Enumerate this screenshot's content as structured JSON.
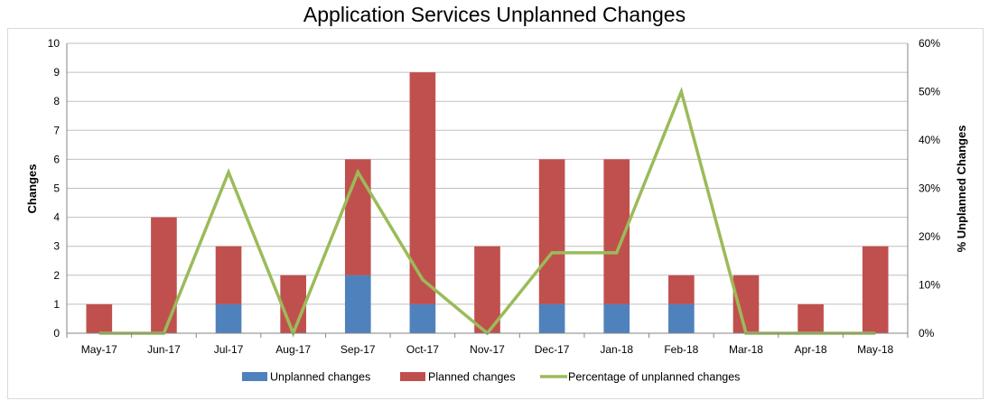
{
  "chart_data": {
    "type": "bar",
    "title": "Application Services Unplanned Changes",
    "ylabel": "Changes",
    "y2label": "% Unplanned Changes",
    "xlabel": "",
    "ylim": [
      0,
      10
    ],
    "y2lim": [
      0,
      0.6
    ],
    "yticks": [
      "0",
      "1",
      "2",
      "3",
      "4",
      "5",
      "6",
      "7",
      "8",
      "9",
      "10"
    ],
    "y2ticks": [
      "0%",
      "10%",
      "20%",
      "30%",
      "40%",
      "50%",
      "60%"
    ],
    "categories": [
      "May-17",
      "Jun-17",
      "Jul-17",
      "Aug-17",
      "Sep-17",
      "Oct-17",
      "Nov-17",
      "Dec-17",
      "Jan-18",
      "Feb-18",
      "Mar-18",
      "Apr-18",
      "May-18"
    ],
    "stacked": true,
    "series": [
      {
        "name": "Unplanned changes",
        "type": "bar",
        "color": "#4F81BD",
        "values": [
          0,
          0,
          1,
          0,
          2,
          1,
          0,
          1,
          1,
          1,
          0,
          0,
          0
        ]
      },
      {
        "name": "Planned changes",
        "type": "bar",
        "color": "#C0504D",
        "values": [
          1,
          4,
          2,
          2,
          4,
          8,
          3,
          5,
          5,
          1,
          2,
          1,
          3
        ]
      },
      {
        "name": "Percentage of unplanned changes",
        "type": "line",
        "axis": "secondary",
        "color": "#9BBB59",
        "values": [
          0,
          0,
          0.3333,
          0,
          0.3333,
          0.1111,
          0,
          0.1667,
          0.1667,
          0.5,
          0,
          0,
          0
        ]
      }
    ],
    "legend_position": "bottom",
    "grid": true
  }
}
